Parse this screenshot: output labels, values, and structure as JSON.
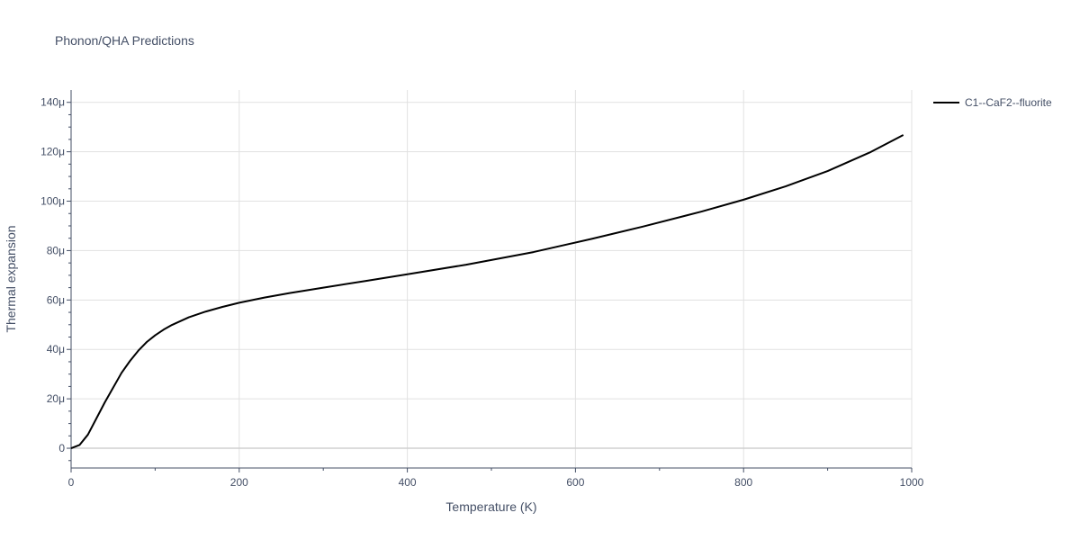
{
  "chart_data": {
    "type": "line",
    "title": "Phonon/QHA Predictions",
    "xlabel": "Temperature (K)",
    "ylabel": "Thermal expansion",
    "xlim": [
      0,
      1000
    ],
    "ylim": [
      -8e-06,
      0.000145
    ],
    "x_ticks": [
      0,
      200,
      400,
      600,
      800,
      1000
    ],
    "x_tick_labels": [
      "0",
      "200",
      "400",
      "600",
      "800",
      "1000"
    ],
    "y_ticks": [
      0,
      2e-05,
      4e-05,
      6e-05,
      8e-05,
      0.0001,
      0.00012,
      0.00014
    ],
    "y_tick_labels": [
      "0",
      "20μ",
      "40μ",
      "60μ",
      "80μ",
      "100μ",
      "120μ",
      "140μ"
    ],
    "grid": true,
    "legend_position": "top-right outside",
    "series": [
      {
        "name": "C1--CaF2--fluorite",
        "color": "#000000",
        "x": [
          0,
          10,
          20,
          30,
          40,
          50,
          60,
          70,
          80,
          90,
          100,
          110,
          120,
          140,
          160,
          180,
          200,
          230,
          260,
          300,
          350,
          400,
          470,
          550,
          620,
          680,
          750,
          800,
          850,
          900,
          950,
          990
        ],
        "y": [
          0,
          1.3e-06,
          5.5e-06,
          1.2e-05,
          1.85e-05,
          2.45e-05,
          3.05e-05,
          3.53e-05,
          3.95e-05,
          4.3e-05,
          4.57e-05,
          4.8e-05,
          4.99e-05,
          5.3e-05,
          5.53e-05,
          5.72e-05,
          5.89e-05,
          6.1e-05,
          6.28e-05,
          6.5e-05,
          6.77e-05,
          7.04e-05,
          7.43e-05,
          7.94e-05,
          8.48e-05,
          8.97e-05,
          9.58e-05,
          0.0001006,
          0.000106,
          0.0001122,
          0.0001197,
          0.0001268
        ]
      }
    ]
  }
}
